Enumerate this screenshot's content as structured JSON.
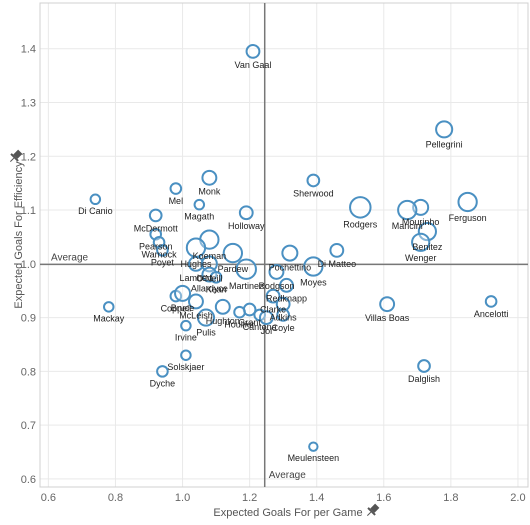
{
  "chart_data": {
    "type": "scatter",
    "xlabel": "Expected Goals For per Game",
    "ylabel": "Expected Goals For Efficiency",
    "xlim": [
      0.575,
      2.03
    ],
    "ylim": [
      0.585,
      1.485
    ],
    "x_ticks": [
      "0.6",
      "0.8",
      "1.0",
      "1.2",
      "1.4",
      "1.6",
      "1.8",
      "2.0"
    ],
    "y_ticks": [
      "0.6",
      "0.7",
      "0.8",
      "0.9",
      "1.0",
      "1.1",
      "1.2",
      "1.3",
      "1.4"
    ],
    "reference_lines": {
      "x": 1.245,
      "y": 0.999,
      "label": "Average"
    },
    "grid": true,
    "marker_color": "#4a90c2",
    "points": [
      {
        "name": "Van Gaal",
        "x": 1.21,
        "y": 1.395,
        "size": 8
      },
      {
        "name": "Pellegrini",
        "x": 1.78,
        "y": 1.25,
        "size": 11
      },
      {
        "name": "Sherwood",
        "x": 1.39,
        "y": 1.155,
        "size": 7
      },
      {
        "name": "Monk",
        "x": 1.08,
        "y": 1.16,
        "size": 9
      },
      {
        "name": "Mel",
        "x": 0.98,
        "y": 1.14,
        "size": 6
      },
      {
        "name": "Magath",
        "x": 1.05,
        "y": 1.11,
        "size": 5
      },
      {
        "name": "Di Canio",
        "x": 0.74,
        "y": 1.12,
        "size": 5
      },
      {
        "name": "McDermott",
        "x": 0.92,
        "y": 1.09,
        "size": 7
      },
      {
        "name": "Holloway",
        "x": 1.19,
        "y": 1.095,
        "size": 8
      },
      {
        "name": "Rodgers",
        "x": 1.53,
        "y": 1.105,
        "size": 15
      },
      {
        "name": "Mourinho",
        "x": 1.71,
        "y": 1.105,
        "size": 10
      },
      {
        "name": "Ferguson",
        "x": 1.85,
        "y": 1.115,
        "size": 13
      },
      {
        "name": "Mancini",
        "x": 1.67,
        "y": 1.1,
        "size": 13
      },
      {
        "name": "Benitez",
        "x": 1.73,
        "y": 1.06,
        "size": 12
      },
      {
        "name": "Wenger",
        "x": 1.71,
        "y": 1.04,
        "size": 12
      },
      {
        "name": "Koeman",
        "x": 1.08,
        "y": 1.045,
        "size": 13
      },
      {
        "name": "Pearson",
        "x": 0.92,
        "y": 1.055,
        "size": 6
      },
      {
        "name": "Warnock",
        "x": 0.93,
        "y": 1.04,
        "size": 6
      },
      {
        "name": "Poyet",
        "x": 0.94,
        "y": 1.025,
        "size": 6
      },
      {
        "name": "Hughes",
        "x": 1.04,
        "y": 1.03,
        "size": 13
      },
      {
        "name": "Lambert",
        "x": 1.04,
        "y": 1.0,
        "size": 9
      },
      {
        "name": "O'Neill",
        "x": 1.08,
        "y": 1.0,
        "size": 10
      },
      {
        "name": "Pardew",
        "x": 1.15,
        "y": 1.02,
        "size": 13
      },
      {
        "name": "Martinez",
        "x": 1.19,
        "y": 0.99,
        "size": 14
      },
      {
        "name": "Allardyce",
        "x": 1.08,
        "y": 0.98,
        "size": 9
      },
      {
        "name": "Kean",
        "x": 1.1,
        "y": 0.975,
        "size": 6
      },
      {
        "name": "Pochettino",
        "x": 1.32,
        "y": 1.02,
        "size": 10
      },
      {
        "name": "Di Matteo",
        "x": 1.46,
        "y": 1.025,
        "size": 8
      },
      {
        "name": "Moyes",
        "x": 1.39,
        "y": 0.995,
        "size": 13
      },
      {
        "name": "Redknapp",
        "x": 1.31,
        "y": 0.96,
        "size": 8
      },
      {
        "name": "Rodgson",
        "x": 1.28,
        "y": 0.985,
        "size": 9
      },
      {
        "name": "Clarke",
        "x": 1.27,
        "y": 0.94,
        "size": 8
      },
      {
        "name": "Adkins",
        "x": 1.3,
        "y": 0.925,
        "size": 8
      },
      {
        "name": "Coyle",
        "x": 1.3,
        "y": 0.905,
        "size": 7
      },
      {
        "name": "Grant",
        "x": 1.2,
        "y": 0.915,
        "size": 7
      },
      {
        "name": "Cantona",
        "x": 1.23,
        "y": 0.905,
        "size": 6
      },
      {
        "name": "Jol",
        "x": 1.25,
        "y": 0.9,
        "size": 8
      },
      {
        "name": "Houllier",
        "x": 1.17,
        "y": 0.91,
        "size": 6
      },
      {
        "name": "Hughton",
        "x": 1.12,
        "y": 0.92,
        "size": 9
      },
      {
        "name": "Coppell",
        "x": 0.98,
        "y": 0.94,
        "size": 6
      },
      {
        "name": "Bruce",
        "x": 1.0,
        "y": 0.945,
        "size": 10
      },
      {
        "name": "McLeish",
        "x": 1.04,
        "y": 0.93,
        "size": 9
      },
      {
        "name": "Pulis",
        "x": 1.07,
        "y": 0.9,
        "size": 11
      },
      {
        "name": "Irvine",
        "x": 1.01,
        "y": 0.885,
        "size": 5
      },
      {
        "name": "Mackay",
        "x": 0.78,
        "y": 0.92,
        "size": 5
      },
      {
        "name": "Solskjaer",
        "x": 1.01,
        "y": 0.83,
        "size": 5
      },
      {
        "name": "Dyche",
        "x": 0.94,
        "y": 0.8,
        "size": 6
      },
      {
        "name": "Villas Boas",
        "x": 1.61,
        "y": 0.925,
        "size": 9
      },
      {
        "name": "Ancelotti",
        "x": 1.92,
        "y": 0.93,
        "size": 6
      },
      {
        "name": "Dalglish",
        "x": 1.72,
        "y": 0.81,
        "size": 7
      },
      {
        "name": "Meulensteen",
        "x": 1.39,
        "y": 0.66,
        "size": 4
      }
    ]
  }
}
